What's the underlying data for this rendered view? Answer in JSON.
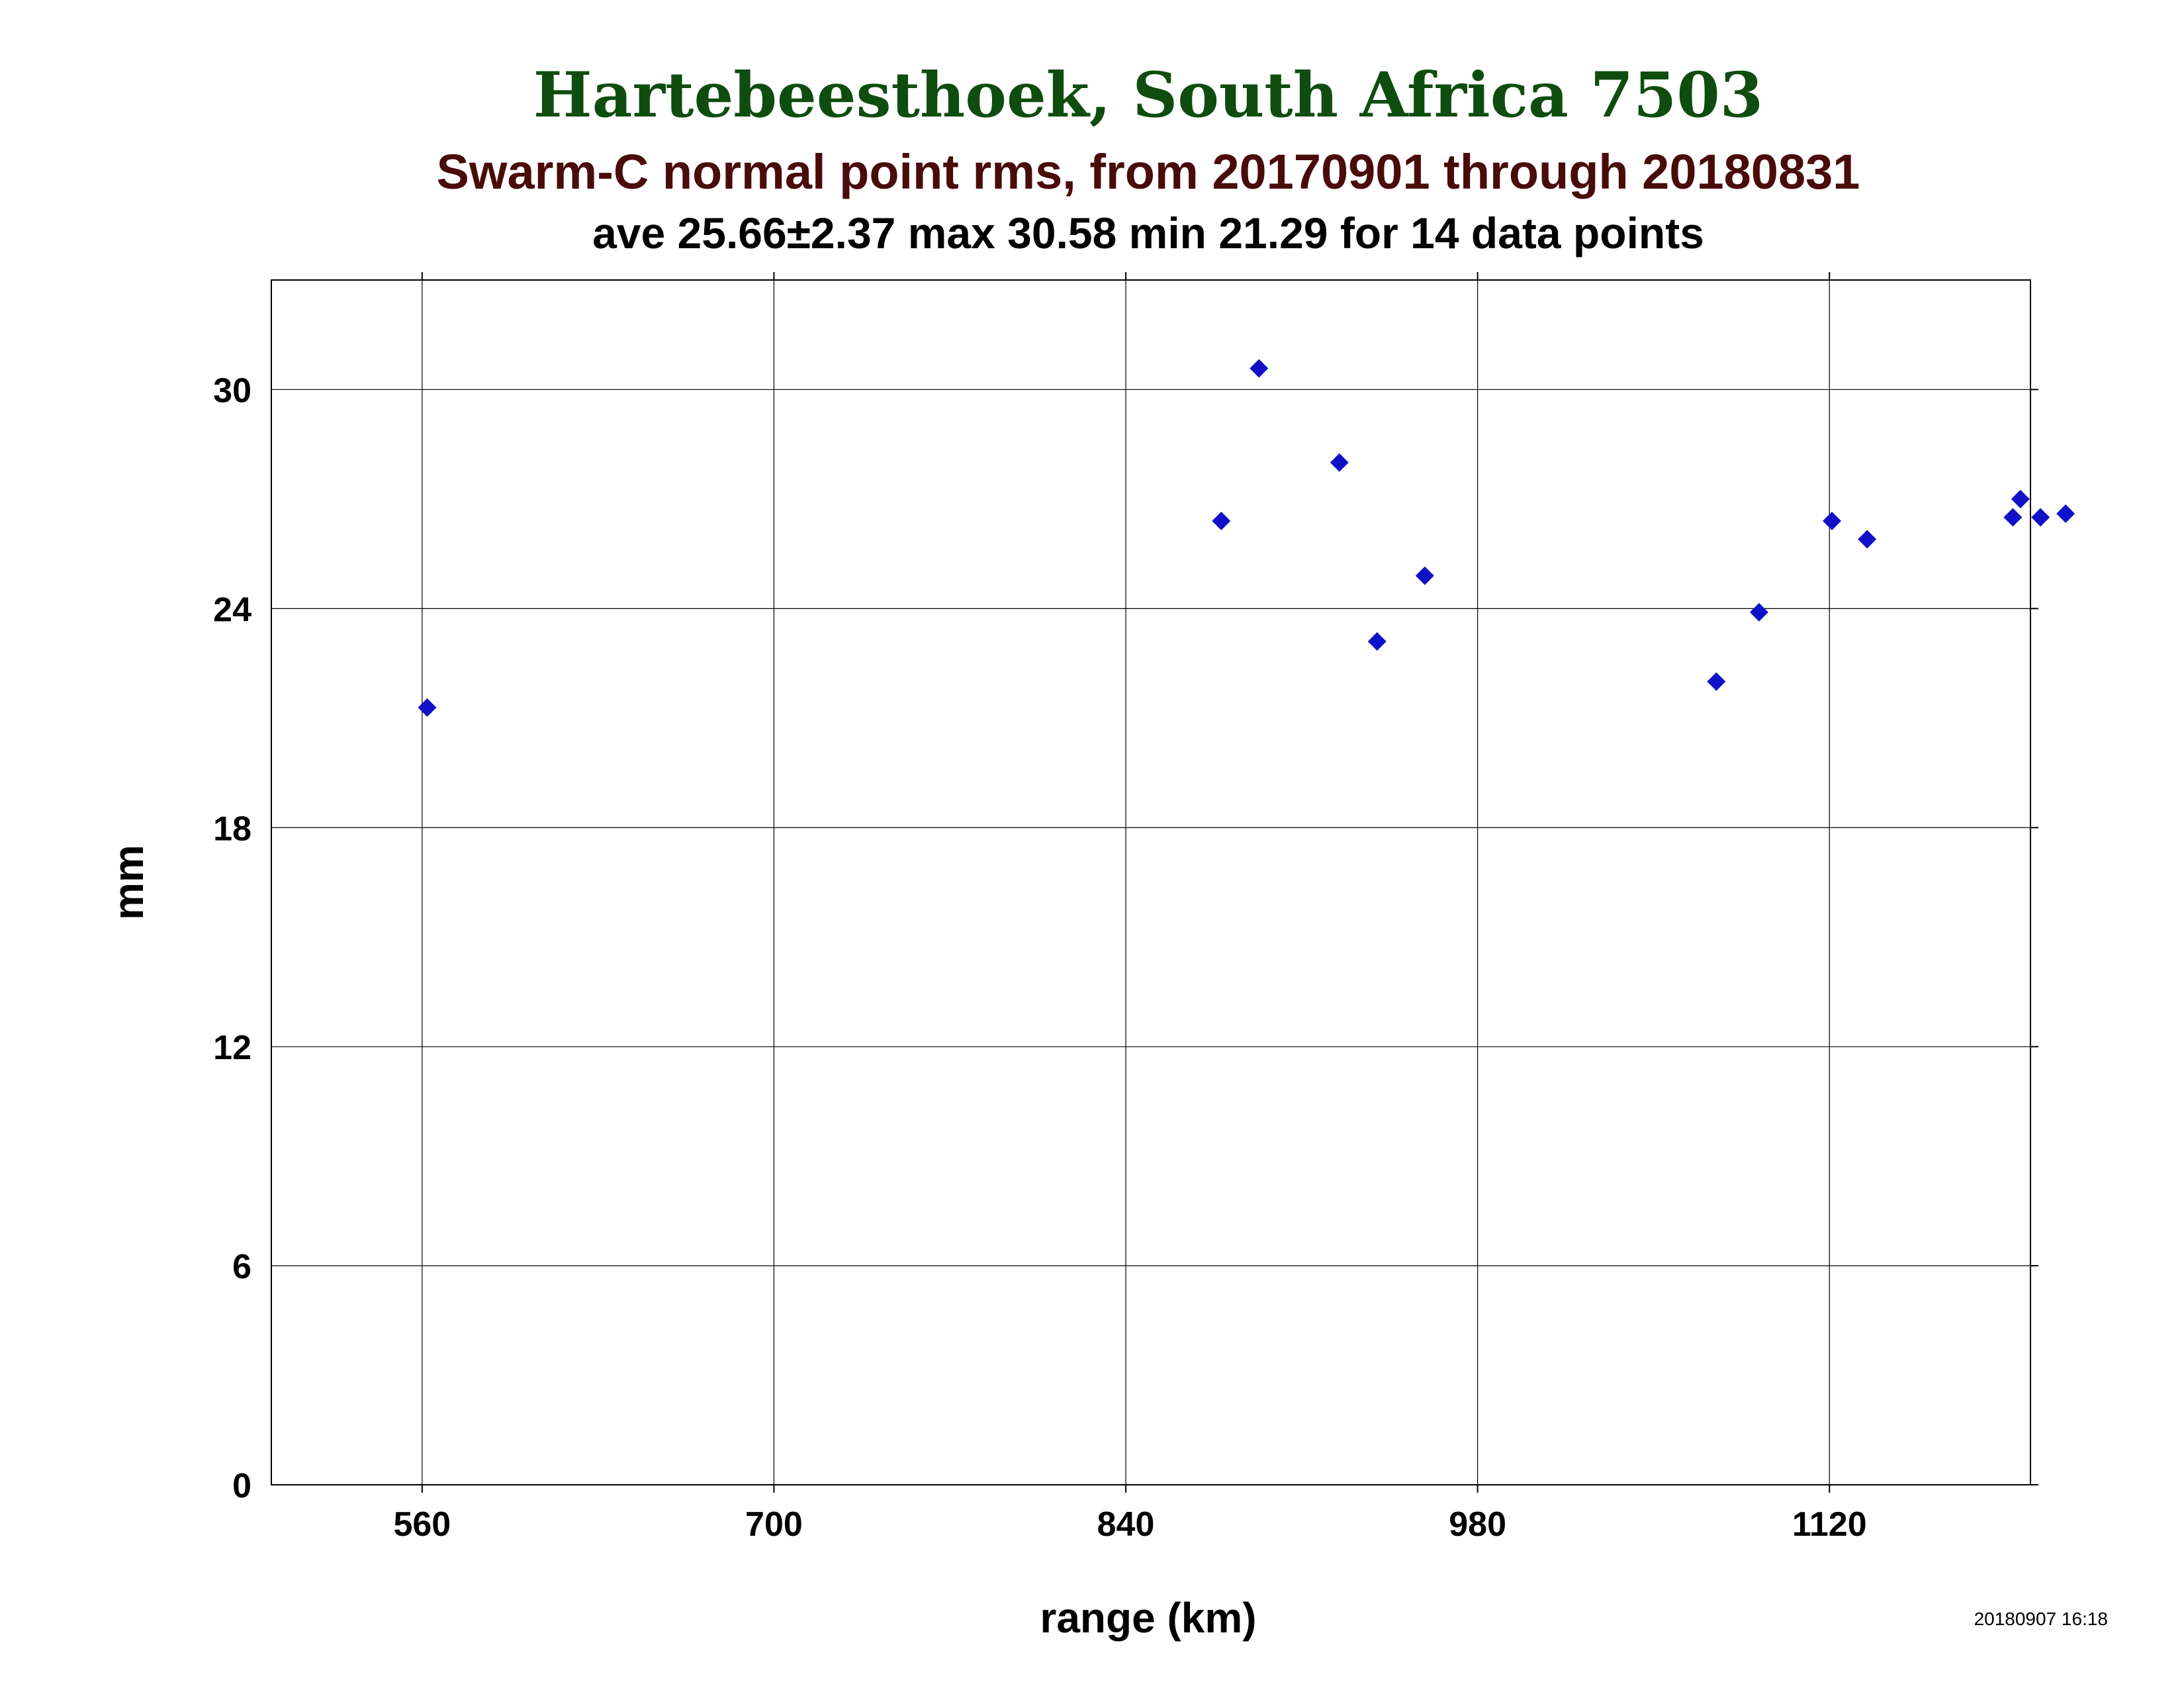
{
  "chart_data": {
    "type": "scatter",
    "title": "Hartebeesthoek, South Africa 7503",
    "subtitle": "Swarm-C normal point rms, from 20170901 through 20180831",
    "stats_line": "ave 25.66±2.37 max 30.58 min 21.29 for 14 data points",
    "xlabel": "range (km)",
    "ylabel": "mm",
    "timestamp": "20180907 16:18",
    "xlim": [
      500,
      1200
    ],
    "ylim": [
      0,
      33
    ],
    "x_ticks": [
      560,
      700,
      840,
      980,
      1120
    ],
    "y_ticks": [
      0,
      6,
      12,
      18,
      24,
      30
    ],
    "grid": true,
    "marker": "diamond",
    "marker_color": "#1010c8",
    "series": [
      {
        "x": [
          562,
          878,
          893,
          925,
          940,
          959,
          1075,
          1092,
          1121,
          1135,
          1193,
          1196,
          1204,
          1214
        ],
        "y": [
          21.29,
          26.4,
          30.58,
          28.0,
          23.1,
          24.9,
          22.0,
          23.9,
          26.4,
          25.9,
          26.5,
          27.0,
          26.5,
          26.6
        ]
      }
    ]
  }
}
